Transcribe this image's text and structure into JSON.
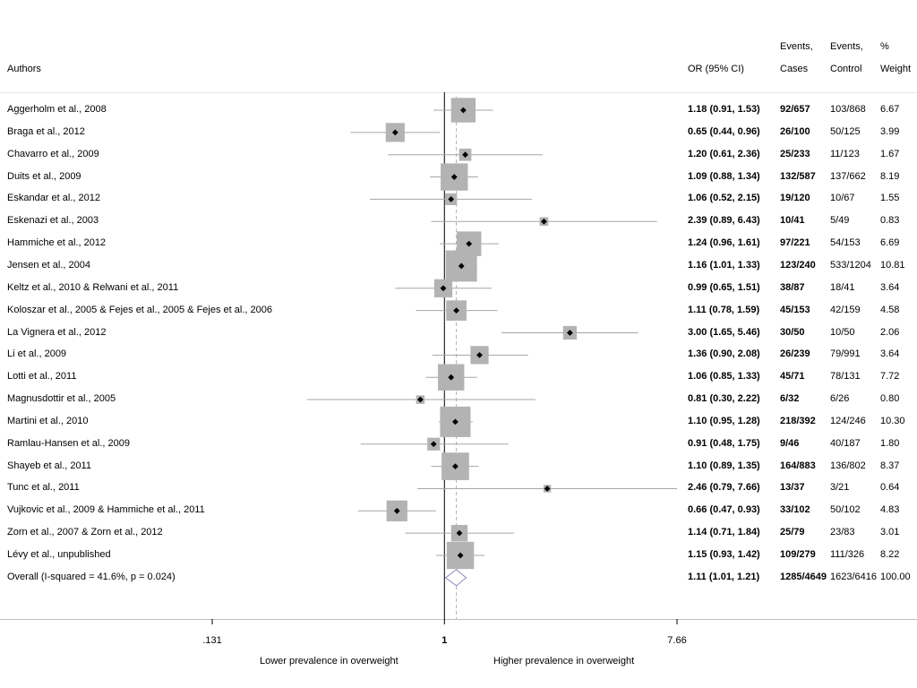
{
  "header": {
    "authors": "Authors",
    "or_ci": "OR (95% CI)",
    "events_cases_line1": "Events,",
    "events_cases_line2": "Cases",
    "events_control_line1": "Events,",
    "events_control_line2": "Control",
    "weight_line1": "%",
    "weight_line2": "Weight"
  },
  "chart_data": {
    "type": "forest",
    "xscale": "log",
    "xlim": [
      0.131,
      7.66
    ],
    "null_value": 1,
    "ticks": [
      {
        "value": 0.131,
        "label": ".131"
      },
      {
        "value": 1,
        "label": "1"
      },
      {
        "value": 7.66,
        "label": "7.66"
      }
    ],
    "xlabel_left": "Lower prevalence in overweight",
    "xlabel_right": "Higher prevalence in overweight",
    "studies": [
      {
        "author": "Aggerholm et al., 2008",
        "or": 1.18,
        "lo": 0.91,
        "hi": 1.53,
        "ci_text": "1.18 (0.91, 1.53)",
        "cases": "92/657",
        "control": "103/868",
        "weight": "6.67",
        "w": 6.67
      },
      {
        "author": "Braga et al., 2012",
        "or": 0.65,
        "lo": 0.44,
        "hi": 0.96,
        "ci_text": "0.65 (0.44, 0.96)",
        "cases": "26/100",
        "control": "50/125",
        "weight": "3.99",
        "w": 3.99
      },
      {
        "author": "Chavarro et al., 2009",
        "or": 1.2,
        "lo": 0.61,
        "hi": 2.36,
        "ci_text": "1.20 (0.61, 2.36)",
        "cases": "25/233",
        "control": "11/123",
        "weight": "1.67",
        "w": 1.67
      },
      {
        "author": "Duits et al., 2009",
        "or": 1.09,
        "lo": 0.88,
        "hi": 1.34,
        "ci_text": "1.09 (0.88, 1.34)",
        "cases": "132/587",
        "control": "137/662",
        "weight": "8.19",
        "w": 8.19
      },
      {
        "author": "Eskandar et al., 2012",
        "or": 1.06,
        "lo": 0.52,
        "hi": 2.15,
        "ci_text": "1.06 (0.52, 2.15)",
        "cases": "19/120",
        "control": "10/67",
        "weight": "1.55",
        "w": 1.55
      },
      {
        "author": "Eskenazi et al., 2003",
        "or": 2.39,
        "lo": 0.89,
        "hi": 6.43,
        "ci_text": "2.39 (0.89, 6.43)",
        "cases": "10/41",
        "control": "5/49",
        "weight": "0.83",
        "w": 0.83
      },
      {
        "author": "Hammiche et al., 2012",
        "or": 1.24,
        "lo": 0.96,
        "hi": 1.61,
        "ci_text": "1.24 (0.96, 1.61)",
        "cases": "97/221",
        "control": "54/153",
        "weight": "6.69",
        "w": 6.69
      },
      {
        "author": "Jensen et al., 2004",
        "or": 1.16,
        "lo": 1.01,
        "hi": 1.33,
        "ci_text": "1.16 (1.01, 1.33)",
        "cases": "123/240",
        "control": "533/1204",
        "weight": "10.81",
        "w": 10.81
      },
      {
        "author": "Keltz et al., 2010 & Relwani et al., 2011",
        "or": 0.99,
        "lo": 0.65,
        "hi": 1.51,
        "ci_text": "0.99 (0.65, 1.51)",
        "cases": "38/87",
        "control": "18/41",
        "weight": "3.64",
        "w": 3.64
      },
      {
        "author": "Koloszar et al., 2005 & Fejes et al., 2005 & Fejes et al., 2006",
        "or": 1.11,
        "lo": 0.78,
        "hi": 1.59,
        "ci_text": "1.11 (0.78, 1.59)",
        "cases": "45/153",
        "control": "42/159",
        "weight": "4.58",
        "w": 4.58
      },
      {
        "author": "La Vignera et al., 2012",
        "or": 3.0,
        "lo": 1.65,
        "hi": 5.46,
        "ci_text": "3.00 (1.65, 5.46)",
        "cases": "30/50",
        "control": "10/50",
        "weight": "2.06",
        "w": 2.06
      },
      {
        "author": "Li et al., 2009",
        "or": 1.36,
        "lo": 0.9,
        "hi": 2.08,
        "ci_text": "1.36 (0.90, 2.08)",
        "cases": "26/239",
        "control": "79/991",
        "weight": "3.64",
        "w": 3.64
      },
      {
        "author": "Lotti et al., 2011",
        "or": 1.06,
        "lo": 0.85,
        "hi": 1.33,
        "ci_text": "1.06 (0.85, 1.33)",
        "cases": "45/71",
        "control": "78/131",
        "weight": "7.72",
        "w": 7.72
      },
      {
        "author": "Magnusdottir et al., 2005",
        "or": 0.81,
        "lo": 0.3,
        "hi": 2.22,
        "ci_text": "0.81 (0.30, 2.22)",
        "cases": "6/32",
        "control": "6/26",
        "weight": "0.80",
        "w": 0.8
      },
      {
        "author": "Martini et al., 2010",
        "or": 1.1,
        "lo": 0.95,
        "hi": 1.28,
        "ci_text": "1.10 (0.95, 1.28)",
        "cases": "218/392",
        "control": "124/246",
        "weight": "10.30",
        "w": 10.3
      },
      {
        "author": "Ramlau-Hansen et al., 2009",
        "or": 0.91,
        "lo": 0.48,
        "hi": 1.75,
        "ci_text": "0.91 (0.48, 1.75)",
        "cases": "9/46",
        "control": "40/187",
        "weight": "1.80",
        "w": 1.8
      },
      {
        "author": "Shayeb et al., 2011",
        "or": 1.1,
        "lo": 0.89,
        "hi": 1.35,
        "ci_text": "1.10 (0.89, 1.35)",
        "cases": "164/883",
        "control": "136/802",
        "weight": "8.37",
        "w": 8.37
      },
      {
        "author": "Tunc et al., 2011",
        "or": 2.46,
        "lo": 0.79,
        "hi": 7.66,
        "ci_text": "2.46 (0.79, 7.66)",
        "cases": "13/37",
        "control": "3/21",
        "weight": "0.64",
        "w": 0.64
      },
      {
        "author": "Vujkovic et al., 2009 & Hammiche et al., 2011",
        "or": 0.66,
        "lo": 0.47,
        "hi": 0.93,
        "ci_text": "0.66 (0.47, 0.93)",
        "cases": "33/102",
        "control": "50/102",
        "weight": "4.83",
        "w": 4.83
      },
      {
        "author": "Zorn et al., 2007 & Zorn et al., 2012",
        "or": 1.14,
        "lo": 0.71,
        "hi": 1.84,
        "ci_text": "1.14 (0.71, 1.84)",
        "cases": "25/79",
        "control": "23/83",
        "weight": "3.01",
        "w": 3.01
      },
      {
        "author": "Lévy et al., unpublished",
        "or": 1.15,
        "lo": 0.93,
        "hi": 1.42,
        "ci_text": "1.15 (0.93, 1.42)",
        "cases": "109/279",
        "control": "111/326",
        "weight": "8.22",
        "w": 8.22
      }
    ],
    "overall": {
      "author": "Overall  (I-squared = 41.6%, p = 0.024)",
      "or": 1.11,
      "lo": 1.01,
      "hi": 1.21,
      "ci_text": "1.11 (1.01, 1.21)",
      "cases": "1285/4649",
      "control": "1623/6416",
      "weight": "100.00"
    },
    "colors": {
      "box": "#b3b3b3",
      "ci_line": "#a6a6a6",
      "axis": "#000000",
      "overall_line": "#b0b0b0",
      "diamond": "#8a8ab8"
    }
  }
}
